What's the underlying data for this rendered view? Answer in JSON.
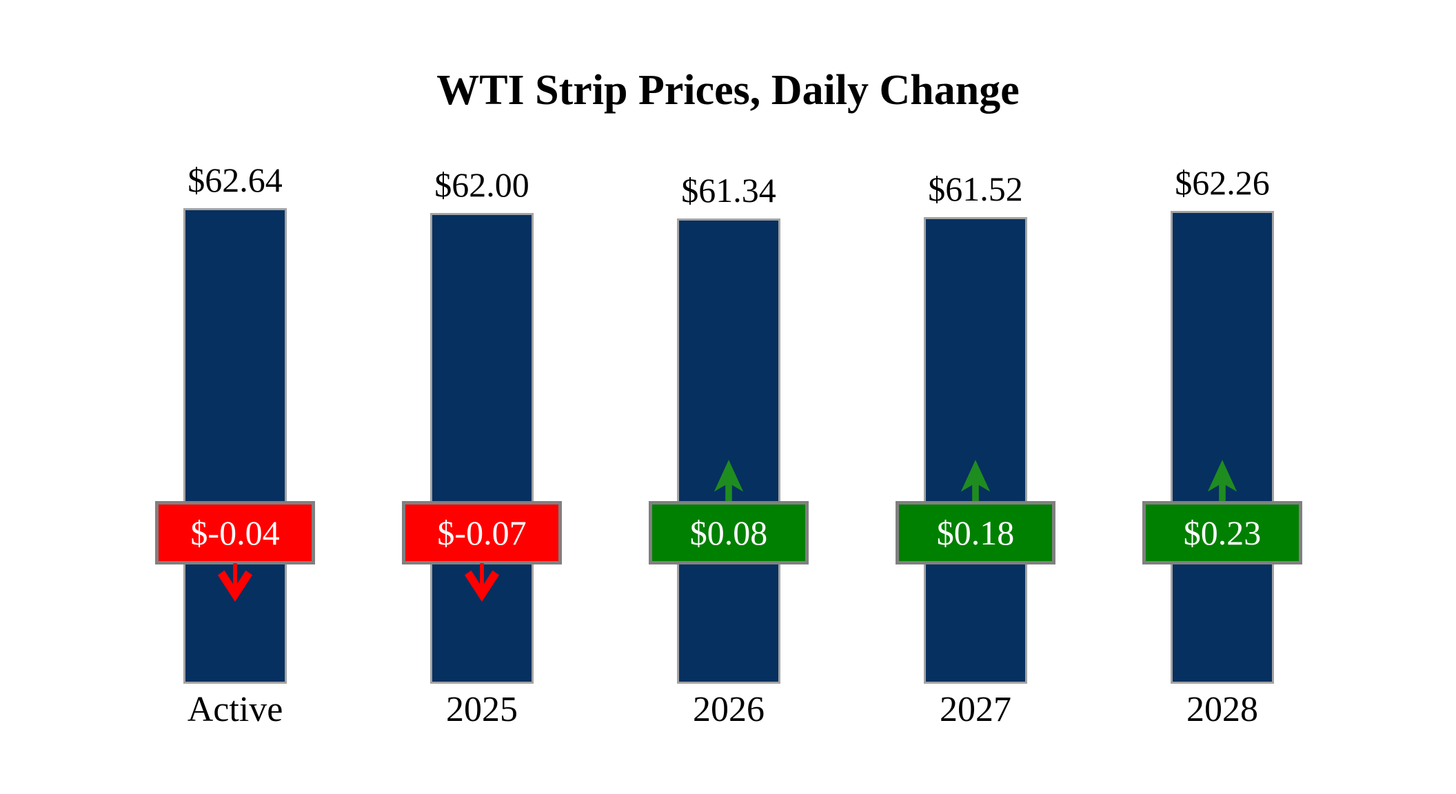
{
  "title": "WTI Strip Prices, Daily Change",
  "chart_data": {
    "type": "bar",
    "title": "WTI Strip Prices, Daily Change",
    "categories": [
      "Active",
      "2025",
      "2026",
      "2027",
      "2028"
    ],
    "series": [
      {
        "name": "Strip Price",
        "values": [
          62.64,
          62.0,
          61.34,
          61.52,
          62.26
        ]
      },
      {
        "name": "Daily Change",
        "values": [
          -0.04,
          -0.07,
          0.08,
          0.18,
          0.23
        ]
      }
    ],
    "columns": [
      {
        "category": "Active",
        "price": 62.64,
        "price_label": "$62.64",
        "change": -0.04,
        "change_label": "$-0.04",
        "direction": "down"
      },
      {
        "category": "2025",
        "price": 62.0,
        "price_label": "$62.00",
        "change": -0.07,
        "change_label": "$-0.07",
        "direction": "down"
      },
      {
        "category": "2026",
        "price": 61.34,
        "price_label": "$61.34",
        "change": 0.08,
        "change_label": "$0.08",
        "direction": "up"
      },
      {
        "category": "2027",
        "price": 61.52,
        "price_label": "$61.52",
        "change": 0.18,
        "change_label": "$0.18",
        "direction": "up"
      },
      {
        "category": "2028",
        "price": 62.26,
        "price_label": "$62.26",
        "change": 0.23,
        "change_label": "$0.23",
        "direction": "up"
      }
    ],
    "colors": {
      "bar": "#06305F",
      "bar_border": "#A3A3A3",
      "badge_border": "#808080",
      "negative": "#FF0000",
      "positive": "#008000",
      "arrow_down": "#FF0000",
      "arrow_up": "#1F8C1F",
      "badge_text": "#FFFFFF"
    },
    "layout_hints": {
      "value_labels": "above bars",
      "change_badges": "overlaid on bars at same height",
      "grid": "off",
      "legend": "none",
      "axes": "none (labels only)"
    }
  }
}
